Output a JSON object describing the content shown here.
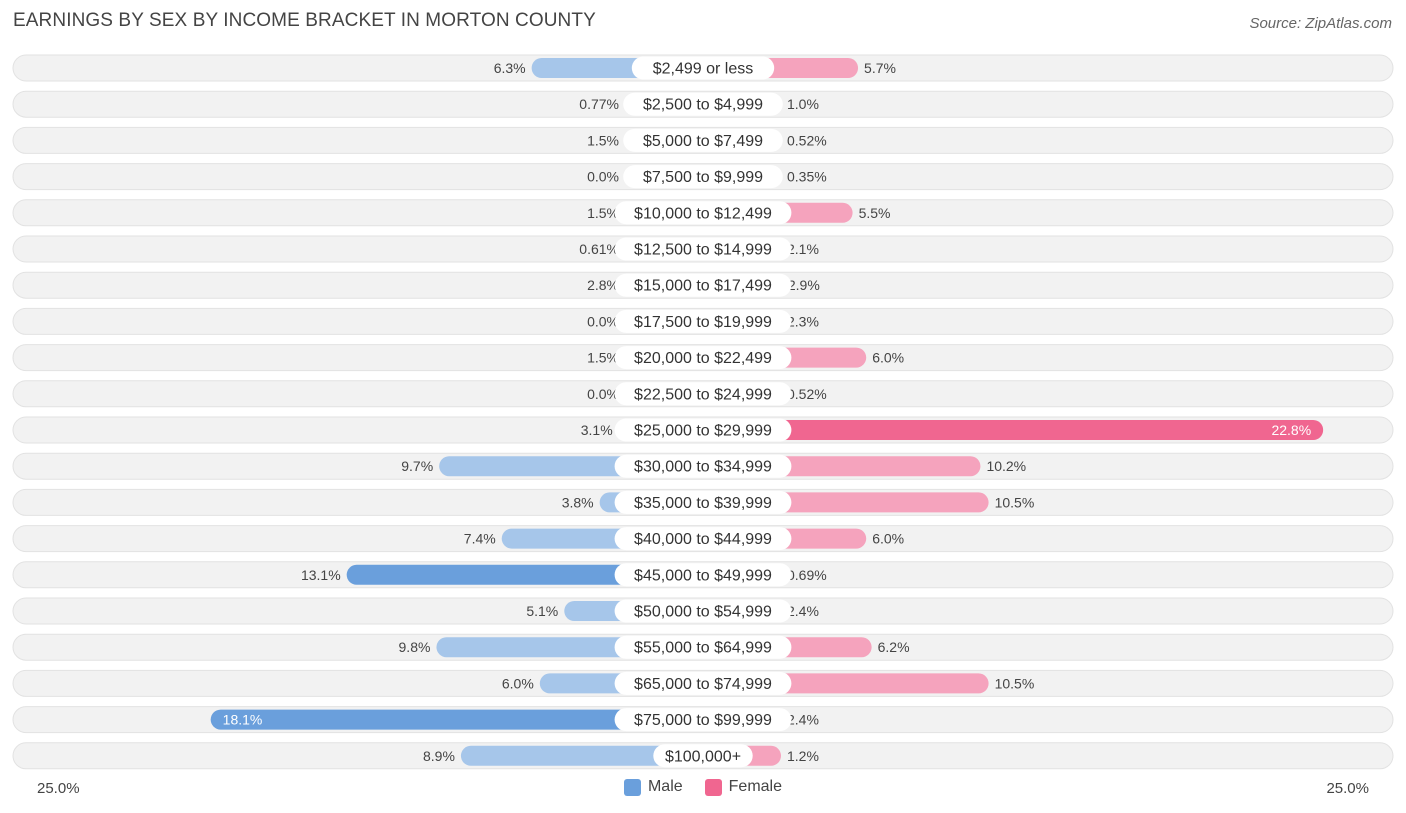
{
  "title": "EARNINGS BY SEX BY INCOME BRACKET IN MORTON COUNTY",
  "source": "Source: ZipAtlas.com",
  "colors": {
    "male": "#6a9fdc",
    "male_light": "#a6c6ea",
    "female": "#f06690",
    "female_light": "#f5a3bd",
    "row_bg": "#f2f2f2"
  },
  "chart_data": {
    "type": "bar",
    "orientation": "horizontal-diverging",
    "title": "EARNINGS BY SEX BY INCOME BRACKET IN MORTON COUNTY",
    "axis_min_label": "25.0%",
    "axis_max_label": "25.0%",
    "xlim": [
      -25,
      25
    ],
    "categories": [
      "$2,499 or less",
      "$2,500 to $4,999",
      "$5,000 to $7,499",
      "$7,500 to $9,999",
      "$10,000 to $12,499",
      "$12,500 to $14,999",
      "$15,000 to $17,499",
      "$17,500 to $19,999",
      "$20,000 to $22,499",
      "$22,500 to $24,999",
      "$25,000 to $29,999",
      "$30,000 to $34,999",
      "$35,000 to $39,999",
      "$40,000 to $44,999",
      "$45,000 to $49,999",
      "$50,000 to $54,999",
      "$55,000 to $64,999",
      "$65,000 to $74,999",
      "$75,000 to $99,999",
      "$100,000+"
    ],
    "series": [
      {
        "name": "Male",
        "values": [
          6.3,
          0.77,
          1.5,
          0.0,
          1.5,
          0.61,
          2.8,
          0.0,
          1.5,
          0.0,
          3.1,
          9.7,
          3.8,
          7.4,
          13.1,
          5.1,
          9.8,
          6.0,
          18.1,
          8.9
        ],
        "labels": [
          "6.3%",
          "0.77%",
          "1.5%",
          "0.0%",
          "1.5%",
          "0.61%",
          "2.8%",
          "0.0%",
          "1.5%",
          "0.0%",
          "3.1%",
          "9.7%",
          "3.8%",
          "7.4%",
          "13.1%",
          "5.1%",
          "9.8%",
          "6.0%",
          "18.1%",
          "8.9%"
        ]
      },
      {
        "name": "Female",
        "values": [
          5.7,
          1.0,
          0.52,
          0.35,
          5.5,
          2.1,
          2.9,
          2.3,
          6.0,
          0.52,
          22.8,
          10.2,
          10.5,
          6.0,
          0.69,
          2.4,
          6.2,
          10.5,
          2.4,
          1.2
        ],
        "labels": [
          "5.7%",
          "1.0%",
          "0.52%",
          "0.35%",
          "5.5%",
          "2.1%",
          "2.9%",
          "2.3%",
          "6.0%",
          "0.52%",
          "22.8%",
          "10.2%",
          "10.5%",
          "6.0%",
          "0.69%",
          "2.4%",
          "6.2%",
          "10.5%",
          "2.4%",
          "1.2%"
        ]
      }
    ],
    "legend": [
      "Male",
      "Female"
    ],
    "legend_position": "bottom-center"
  }
}
